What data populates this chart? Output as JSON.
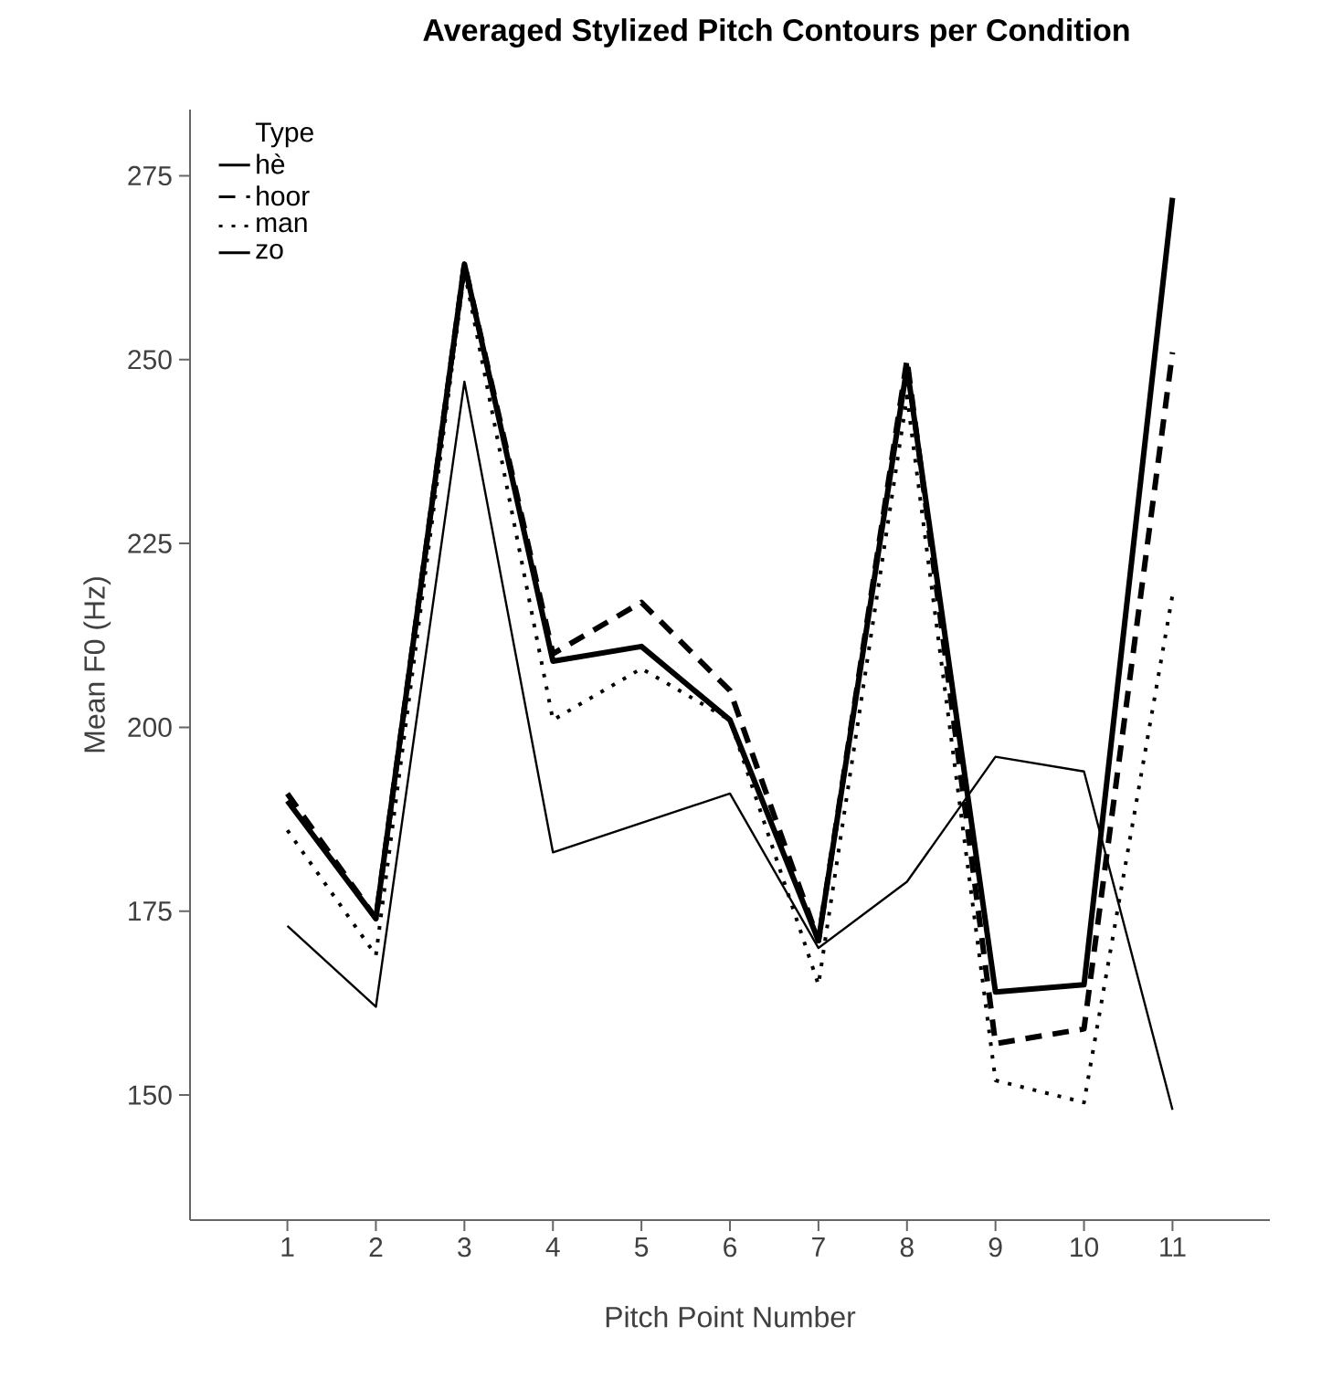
{
  "chart_data": {
    "type": "line",
    "title": "Averaged Stylized Pitch Contours per Condition",
    "xlabel": "Pitch Point Number",
    "ylabel": "Mean F0 (Hz)",
    "legend_title": "Type",
    "legend": "top left",
    "grid": false,
    "x": [
      1,
      2,
      3,
      4,
      5,
      6,
      7,
      8,
      9,
      10,
      11
    ],
    "xlim": [
      -0.1,
      12.1
    ],
    "xticks": [
      1,
      2,
      3,
      4,
      5,
      6,
      7,
      8,
      9,
      10,
      11
    ],
    "ylim": [
      133,
      284
    ],
    "yticks": [
      150,
      175,
      200,
      225,
      250,
      275
    ],
    "series": [
      {
        "name": "hè",
        "color": "#000000",
        "line_style": "solid",
        "values": [
          190,
          174,
          263,
          209,
          211,
          201,
          171,
          249,
          164,
          165,
          272
        ]
      },
      {
        "name": "hoor",
        "color": "#000000",
        "line_style": "dashed",
        "values": [
          191,
          174,
          263,
          210,
          217,
          205,
          171,
          250,
          157,
          159,
          251
        ]
      },
      {
        "name": "man",
        "color": "#000000",
        "line_style": "dotted",
        "values": [
          186,
          169,
          262,
          201,
          208,
          201,
          165,
          245,
          152,
          149,
          218
        ]
      },
      {
        "name": "zo",
        "color": "#000000",
        "line_style": "solid",
        "values": [
          173,
          162,
          247,
          183,
          187,
          191,
          170,
          179,
          196,
          194,
          148
        ]
      }
    ]
  }
}
